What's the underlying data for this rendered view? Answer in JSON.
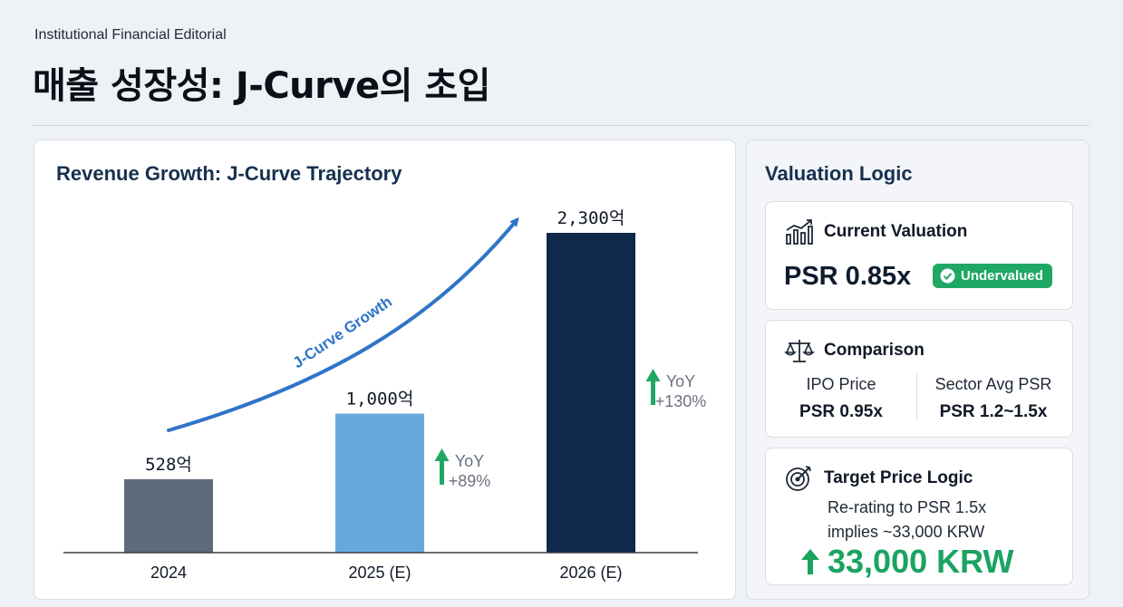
{
  "header": {
    "kicker": "Institutional Financial Editorial",
    "title": "매출 성장성: J-Curve의 초입"
  },
  "chart_data": {
    "type": "bar",
    "title": "Revenue Growth: J-Curve Trajectory",
    "categories": [
      "2024",
      "2025 (E)",
      "2026 (E)"
    ],
    "values": [
      528,
      1000,
      2300
    ],
    "value_labels": [
      "528억",
      "1,000억",
      "2,300억"
    ],
    "bar_colors": [
      "#5f6b7c",
      "#68a9dd",
      "#10294a"
    ],
    "ylim": [
      0,
      2300
    ],
    "grid": false,
    "legend": "none",
    "growth": [
      {
        "label": "YoY",
        "value": "+89%"
      },
      {
        "label": "YoY",
        "value": "+130%"
      }
    ],
    "annotation": "J-Curve Growth"
  },
  "valuation": {
    "title": "Valuation Logic",
    "current": {
      "heading": "Current Valuation",
      "value": "PSR 0.85x",
      "badge": "Undervalued",
      "icon": "bar-chart-growth-icon"
    },
    "comparison": {
      "heading": "Comparison",
      "icon": "scales-icon",
      "left_label": "IPO Price",
      "left_value": "PSR 0.95x",
      "right_label": "Sector Avg PSR",
      "right_value": "PSR 1.2~1.5x"
    },
    "target": {
      "heading": "Target Price Logic",
      "icon": "target-icon",
      "line1": "Re-rating to PSR 1.5x",
      "line2": "implies ~33,000 KRW",
      "price": "33,000 KRW"
    }
  },
  "colors": {
    "accent_blue": "#2f74c8",
    "growth_green": "#1fa864",
    "title_navy": "#17304f"
  }
}
